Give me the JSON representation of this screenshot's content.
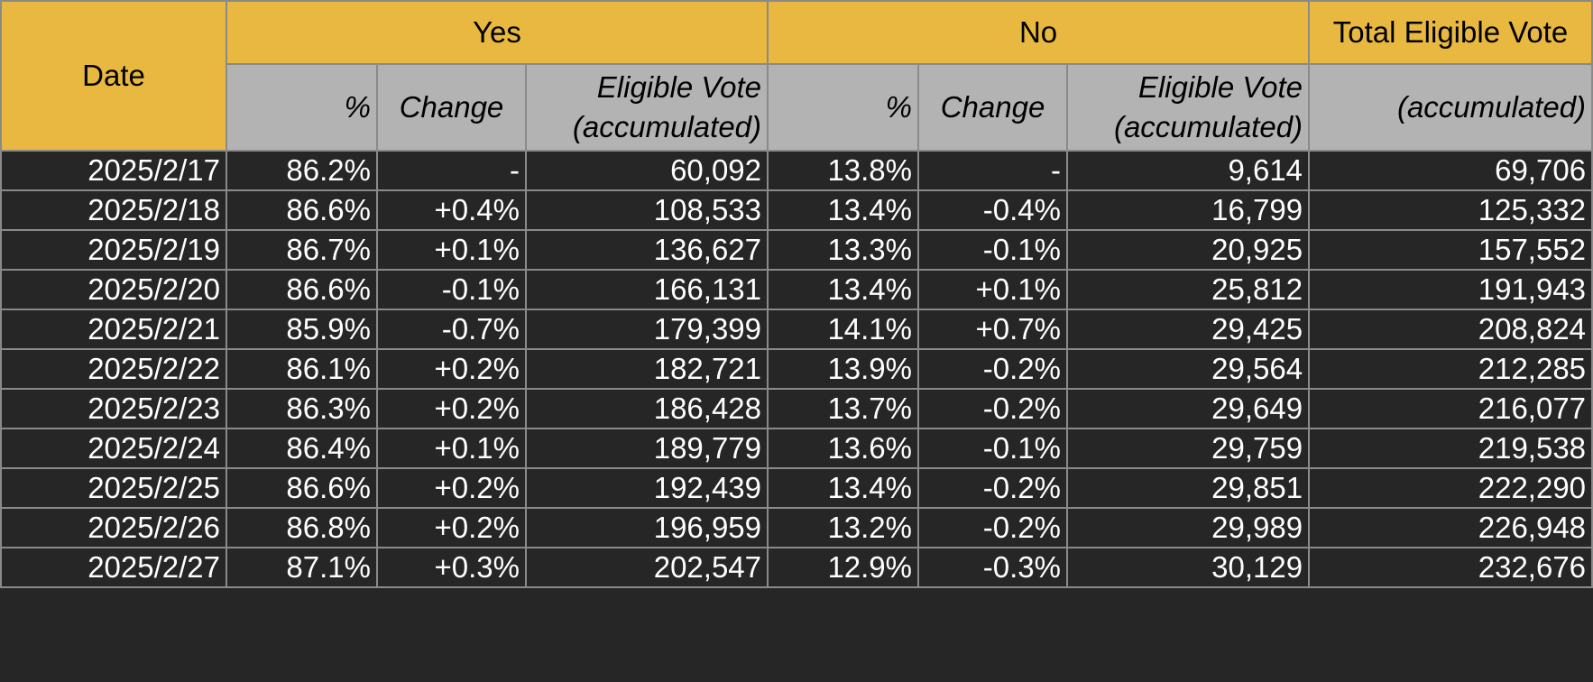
{
  "table": {
    "header": {
      "date": "Date",
      "yes": "Yes",
      "no": "No",
      "total": "Total Eligible Vote",
      "sub": [
        "%",
        "Change",
        "Eligible Vote\n(accumulated)",
        "%",
        "Change",
        "Eligible Vote\n(accumulated)",
        "(accumulated)"
      ]
    },
    "rows": [
      [
        "2025/2/17",
        "86.2%",
        "-",
        "60,092",
        "13.8%",
        "-",
        "9,614",
        "69,706"
      ],
      [
        "2025/2/18",
        "86.6%",
        "+0.4%",
        "108,533",
        "13.4%",
        "-0.4%",
        "16,799",
        "125,332"
      ],
      [
        "2025/2/19",
        "86.7%",
        "+0.1%",
        "136,627",
        "13.3%",
        "-0.1%",
        "20,925",
        "157,552"
      ],
      [
        "2025/2/20",
        "86.6%",
        "-0.1%",
        "166,131",
        "13.4%",
        "+0.1%",
        "25,812",
        "191,943"
      ],
      [
        "2025/2/21",
        "85.9%",
        "-0.7%",
        "179,399",
        "14.1%",
        "+0.7%",
        "29,425",
        "208,824"
      ],
      [
        "2025/2/22",
        "86.1%",
        "+0.2%",
        "182,721",
        "13.9%",
        "-0.2%",
        "29,564",
        "212,285"
      ],
      [
        "2025/2/23",
        "86.3%",
        "+0.2%",
        "186,428",
        "13.7%",
        "-0.2%",
        "29,649",
        "216,077"
      ],
      [
        "2025/2/24",
        "86.4%",
        "+0.1%",
        "189,779",
        "13.6%",
        "-0.1%",
        "29,759",
        "219,538"
      ],
      [
        "2025/2/25",
        "86.6%",
        "+0.2%",
        "192,439",
        "13.4%",
        "-0.2%",
        "29,851",
        "222,290"
      ],
      [
        "2025/2/26",
        "86.8%",
        "+0.2%",
        "196,959",
        "13.2%",
        "-0.2%",
        "29,989",
        "226,948"
      ],
      [
        "2025/2/27",
        "87.1%",
        "+0.3%",
        "202,547",
        "12.9%",
        "-0.3%",
        "30,129",
        "232,676"
      ]
    ]
  }
}
